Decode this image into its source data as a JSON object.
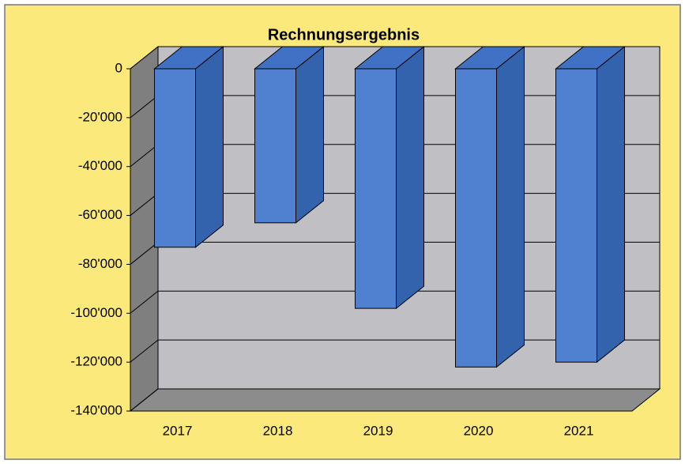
{
  "chart_data": {
    "type": "bar",
    "title": "Rechnungsergebnis",
    "categories": [
      "2017",
      "2018",
      "2019",
      "2020",
      "2021"
    ],
    "values": [
      -73000,
      -63000,
      -98000,
      -122000,
      -120000
    ],
    "color": "#4f81d0",
    "ylim": [
      -140000,
      0
    ],
    "yticks": [
      0,
      {
        "value": -20000,
        "label": "-20'000"
      },
      {
        "value": -40000,
        "label": "-40'000"
      },
      {
        "value": -60000,
        "label": "-60'000"
      },
      {
        "value": -80000,
        "label": "-80'000"
      },
      {
        "value": -100000,
        "label": "-100'000"
      },
      {
        "value": -120000,
        "label": "-120'000"
      },
      {
        "value": -140000,
        "label": "-140'000"
      }
    ],
    "grid": true
  }
}
